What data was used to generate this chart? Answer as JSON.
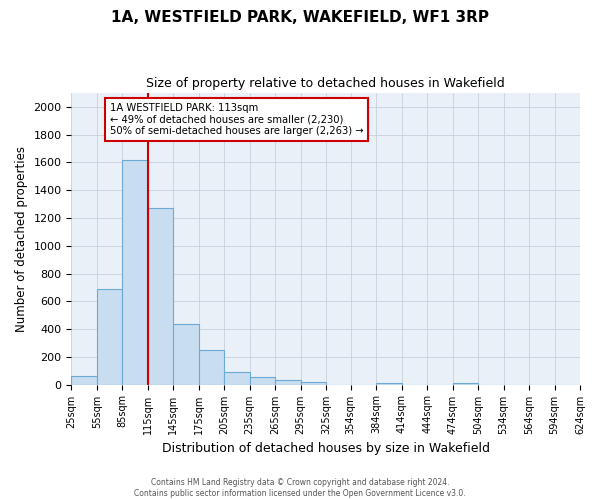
{
  "title": "1A, WESTFIELD PARK, WAKEFIELD, WF1 3RP",
  "subtitle": "Size of property relative to detached houses in Wakefield",
  "xlabel": "Distribution of detached houses by size in Wakefield",
  "ylabel": "Number of detached properties",
  "bar_color": "#c9ddf0",
  "bar_edge_color": "#6aaad4",
  "background_color": "#ffffff",
  "axes_bg_color": "#eaf0f8",
  "grid_color": "#c8d0dc",
  "annotation_box_edge_color": "#cc0000",
  "red_line_x": 115,
  "annotation_title": "1A WESTFIELD PARK: 113sqm",
  "annotation_line1": "← 49% of detached houses are smaller (2,230)",
  "annotation_line2": "50% of semi-detached houses are larger (2,263) →",
  "footer_line1": "Contains HM Land Registry data © Crown copyright and database right 2024.",
  "footer_line2": "Contains public sector information licensed under the Open Government Licence v3.0.",
  "categories": [
    "25sqm",
    "55sqm",
    "85sqm",
    "115sqm",
    "145sqm",
    "175sqm",
    "205sqm",
    "235sqm",
    "265sqm",
    "295sqm",
    "325sqm",
    "354sqm",
    "384sqm",
    "414sqm",
    "444sqm",
    "474sqm",
    "504sqm",
    "534sqm",
    "564sqm",
    "594sqm",
    "624sqm"
  ],
  "tick_positions": [
    25,
    55,
    85,
    115,
    145,
    175,
    205,
    235,
    265,
    295,
    325,
    354,
    384,
    414,
    444,
    474,
    504,
    534,
    564,
    594,
    624
  ],
  "bar_lefts": [
    25,
    55,
    85,
    115,
    145,
    175,
    205,
    235,
    265,
    295,
    325,
    354,
    384,
    414,
    444,
    474,
    504,
    534,
    564,
    594
  ],
  "bar_widths": [
    30,
    30,
    30,
    30,
    30,
    30,
    30,
    30,
    30,
    30,
    29,
    30,
    30,
    30,
    30,
    30,
    30,
    30,
    30,
    30
  ],
  "bar_heights": [
    65,
    690,
    1620,
    1275,
    435,
    248,
    88,
    52,
    30,
    20,
    0,
    0,
    12,
    0,
    0,
    8,
    0,
    0,
    0,
    0
  ],
  "xlim": [
    25,
    624
  ],
  "ylim": [
    0,
    2100
  ],
  "yticks": [
    0,
    200,
    400,
    600,
    800,
    1000,
    1200,
    1400,
    1600,
    1800,
    2000
  ]
}
